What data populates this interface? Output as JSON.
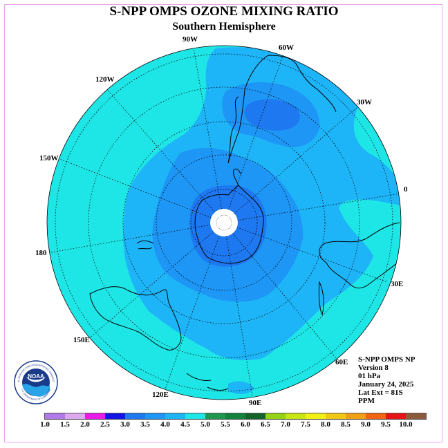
{
  "header": {
    "title": "S-NPP OMPS OZONE MIXING RATIO",
    "subtitle": "Southern Hemisphere"
  },
  "longitude_labels": [
    "90W",
    "60W",
    "30W",
    "0",
    "30E",
    "60E",
    "90E",
    "120E",
    "150E",
    "180",
    "150W",
    "120W"
  ],
  "info": {
    "line1": "S-NPP OMPS NP",
    "line2": "Version 8",
    "line3": "01 hPa",
    "line4": "January 24, 2025",
    "line5": "Lat Ext = 81S",
    "line6": "PPM"
  },
  "logo": {
    "text": "NOAA",
    "ring_text": "NATIONAL OCEANIC AND ATMOSPHERIC ADMINISTRATION",
    "bottom_text": "U.S. DEPARTMENT OF COMMERCE"
  },
  "colorbar": {
    "ticks": [
      "1.0",
      "1.5",
      "2.0",
      "2.5",
      "3.0",
      "3.5",
      "4.0",
      "4.5",
      "5.0",
      "5.5",
      "6.0",
      "6.5",
      "7.0",
      "7.5",
      "8.0",
      "8.5",
      "9.0",
      "9.5",
      "10.0"
    ],
    "colors": [
      "#b07ae8",
      "#dca8f0",
      "#e81ae8",
      "#1414e6",
      "#1e78f0",
      "#1e96f5",
      "#1eb4f8",
      "#1ee6e6",
      "#1e9650",
      "#14823c",
      "#14642a",
      "#96d214",
      "#c8e614",
      "#f0f014",
      "#f0c814",
      "#f0a014",
      "#f06414",
      "#e61414",
      "#8c5a3c"
    ]
  },
  "map_colors": {
    "band_4_5_to_5_0": "#1ee6e6",
    "band_4_0_to_4_5": "#1eb4f8",
    "band_3_5_to_4_0": "#1e96f5",
    "band_3_0_to_3_5": "#1e78f0"
  }
}
